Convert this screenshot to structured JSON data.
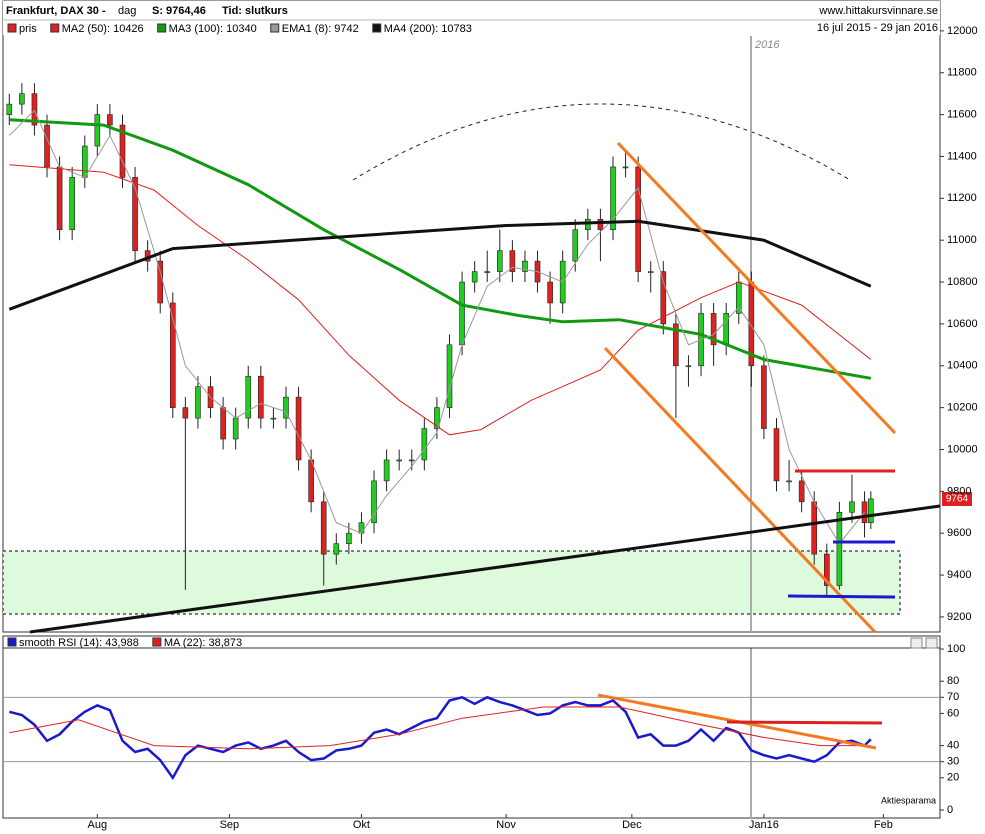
{
  "chart_data": [
    {
      "type": "candlestick",
      "title": "Frankfurt, DAX 30 -",
      "period": "dag",
      "last": "S: 9764,46",
      "mode": "Tid: slutkurs",
      "source": "www.hittakursvinnare.se",
      "date_range": "16 jul 2015 - 29 jan 2016",
      "annotation": "2016",
      "xlim": [
        -1,
        148
      ],
      "ylim": [
        9128,
        12052
      ],
      "yticks": [
        9200,
        9400,
        9600,
        9800,
        10000,
        10200,
        10400,
        10600,
        10800,
        11000,
        11200,
        11400,
        11600,
        11800,
        12000
      ],
      "candles": {
        "name": "pris",
        "color": "#dd2222",
        "up_color": "#22cc22",
        "x": [
          0,
          2,
          4,
          6,
          8,
          10,
          12,
          14,
          16,
          18,
          20,
          22,
          24,
          26,
          28,
          30,
          32,
          34,
          36,
          38,
          40,
          42,
          44,
          46,
          48,
          50,
          52,
          54,
          56,
          58,
          60,
          62,
          64,
          66,
          68,
          70,
          72,
          74,
          76,
          78,
          80,
          82,
          84,
          86,
          88,
          90,
          92,
          94,
          96,
          98,
          100,
          102,
          104,
          106,
          108,
          110,
          112,
          114,
          116,
          118,
          120,
          122,
          124,
          126,
          128,
          130,
          132,
          134,
          136,
          137
        ],
        "open": [
          11600,
          11650,
          11700,
          11550,
          11350,
          11050,
          11300,
          11450,
          11600,
          11550,
          11300,
          10950,
          10900,
          10700,
          10200,
          10150,
          10300,
          10200,
          10050,
          10150,
          10350,
          10150,
          10150,
          10250,
          9950,
          9750,
          9500,
          9550,
          9600,
          9650,
          9850,
          9950,
          9950,
          9950,
          10100,
          10200,
          10500,
          10800,
          10850,
          10850,
          10950,
          10850,
          10900,
          10800,
          10700,
          10900,
          11050,
          11100,
          11050,
          11350,
          11350,
          10850,
          10850,
          10600,
          10400,
          10400,
          10650,
          10500,
          10650,
          10800,
          10400,
          10100,
          9850,
          9850,
          9750,
          9500,
          9350,
          9700,
          9750,
          9650
        ],
        "high": [
          11700,
          11750,
          11750,
          11600,
          11400,
          11350,
          11500,
          11650,
          11650,
          11600,
          11350,
          11000,
          10950,
          10750,
          10250,
          10350,
          10350,
          10250,
          10200,
          10400,
          10400,
          10200,
          10300,
          10300,
          10000,
          9800,
          9600,
          9650,
          9700,
          9900,
          10000,
          10000,
          10000,
          10150,
          10250,
          10550,
          10850,
          10900,
          10950,
          11050,
          11000,
          10950,
          10950,
          10850,
          10950,
          11100,
          11150,
          11150,
          11400,
          11430,
          11400,
          10900,
          10900,
          10650,
          10450,
          10700,
          10700,
          10700,
          10850,
          10850,
          10450,
          10150,
          9950,
          9900,
          9800,
          9550,
          9750,
          9880,
          9800,
          9800
        ],
        "low": [
          11550,
          11600,
          11500,
          11300,
          11000,
          11000,
          11250,
          11400,
          11500,
          11250,
          10900,
          10850,
          10650,
          10150,
          9330,
          10100,
          10150,
          10000,
          10000,
          10100,
          10100,
          10100,
          10100,
          9900,
          9700,
          9350,
          9450,
          9500,
          9550,
          9600,
          9800,
          9900,
          9900,
          9900,
          10050,
          10150,
          10450,
          10750,
          10800,
          10800,
          10800,
          10800,
          10750,
          10600,
          10650,
          10850,
          11000,
          10900,
          11000,
          11300,
          10800,
          10750,
          10550,
          10150,
          10300,
          10350,
          10400,
          10450,
          10600,
          10300,
          10050,
          9800,
          9800,
          9700,
          9450,
          9300,
          9330,
          9650,
          9580,
          9620
        ],
        "close": [
          11650,
          11700,
          11550,
          11350,
          11050,
          11300,
          11450,
          11600,
          11550,
          11300,
          10950,
          10900,
          10700,
          10200,
          10150,
          10300,
          10200,
          10050,
          10150,
          10350,
          10150,
          10150,
          10250,
          9950,
          9750,
          9500,
          9550,
          9600,
          9650,
          9850,
          9950,
          9950,
          9950,
          10100,
          10200,
          10500,
          10800,
          10850,
          10850,
          10950,
          10850,
          10900,
          10800,
          10700,
          10900,
          11050,
          11100,
          11050,
          11350,
          11350,
          10850,
          10850,
          10600,
          10400,
          10400,
          10650,
          10500,
          10650,
          10800,
          10400,
          10100,
          9850,
          9850,
          9750,
          9500,
          9350,
          9700,
          9750,
          9650,
          9764
        ]
      },
      "series": [
        {
          "name": "MA2 (50): 10426",
          "color": "#e02020",
          "width": 1,
          "x": [
            0,
            15,
            23,
            30,
            38,
            46,
            54,
            62,
            70,
            75,
            83,
            94,
            100,
            110,
            116,
            126,
            137
          ],
          "values": [
            11360,
            11325,
            11240,
            11070,
            10905,
            10715,
            10450,
            10235,
            10070,
            10095,
            10235,
            10380,
            10570,
            10725,
            10800,
            10690,
            10430
          ]
        },
        {
          "name": "MA3 (100): 10340",
          "color": "#119911",
          "width": 3,
          "x": [
            0,
            15,
            26,
            38,
            50,
            62,
            72,
            81,
            88,
            97,
            110,
            120,
            137
          ],
          "values": [
            11575,
            11550,
            11430,
            11265,
            11050,
            10860,
            10690,
            10640,
            10610,
            10620,
            10550,
            10430,
            10340
          ]
        },
        {
          "name": "EMA1 (8): 9742",
          "color": "#999999",
          "width": 1,
          "x": [
            0,
            4,
            8,
            12,
            16,
            20,
            24,
            28,
            32,
            36,
            40,
            44,
            48,
            52,
            56,
            60,
            64,
            68,
            72,
            76,
            80,
            84,
            88,
            92,
            96,
            100,
            104,
            108,
            112,
            116,
            120,
            124,
            128,
            132,
            136
          ],
          "values": [
            11500,
            11620,
            11350,
            11300,
            11500,
            11250,
            10850,
            10400,
            10250,
            10150,
            10220,
            10180,
            9950,
            9650,
            9600,
            9780,
            9920,
            10080,
            10500,
            10780,
            10870,
            10850,
            10800,
            10980,
            11100,
            11250,
            10800,
            10500,
            10550,
            10680,
            10500,
            10000,
            9750,
            9550,
            9700
          ]
        },
        {
          "name": "MA4 (200): 10783",
          "color": "#111111",
          "width": 3,
          "x": [
            0,
            26,
            50,
            79,
            100,
            120,
            137
          ],
          "values": [
            10670,
            10960,
            11010,
            11070,
            11090,
            11000,
            10780
          ]
        }
      ]
    },
    {
      "type": "line",
      "watermark": "Aktiesparama",
      "xlim": [
        -1,
        148
      ],
      "ylim": [
        -5,
        105
      ],
      "yticks": [
        0,
        20,
        30,
        40,
        60,
        70,
        80,
        100
      ],
      "reference_lines": [
        30,
        70
      ],
      "xticks": [
        {
          "value": 14,
          "label": "Aug"
        },
        {
          "value": 35,
          "label": "Sep"
        },
        {
          "value": 56,
          "label": "Okt"
        },
        {
          "value": 79,
          "label": "Nov"
        },
        {
          "value": 99,
          "label": "Dec"
        },
        {
          "value": 120,
          "label": "Jan16"
        },
        {
          "value": 139,
          "label": "Feb"
        }
      ],
      "series": [
        {
          "name": "smooth RSI (14): 43,988",
          "color": "#1a1acc",
          "width": 2.5,
          "x": [
            0,
            2,
            4,
            6,
            8,
            10,
            12,
            14,
            16,
            18,
            20,
            22,
            24,
            26,
            28,
            30,
            32,
            34,
            36,
            38,
            40,
            42,
            44,
            46,
            48,
            50,
            52,
            54,
            56,
            58,
            60,
            62,
            64,
            66,
            68,
            70,
            72,
            74,
            76,
            78,
            80,
            82,
            84,
            86,
            88,
            90,
            92,
            94,
            96,
            98,
            100,
            102,
            104,
            106,
            108,
            110,
            112,
            114,
            116,
            118,
            120,
            122,
            124,
            126,
            128,
            130,
            132,
            134,
            136,
            137
          ],
          "values": [
            61,
            59,
            53,
            43,
            47,
            55,
            61,
            65,
            62,
            43,
            36,
            38,
            31,
            20,
            34,
            40,
            38,
            36,
            40,
            42,
            38,
            40,
            43,
            36,
            31,
            32,
            37,
            38,
            40,
            48,
            50,
            47,
            51,
            55,
            57,
            68,
            70,
            66,
            70,
            67,
            65,
            62,
            59,
            60,
            65,
            67,
            65,
            65,
            68,
            61,
            45,
            47,
            40,
            40,
            43,
            50,
            43,
            51,
            48,
            37,
            34,
            32,
            34,
            32,
            30,
            34,
            42,
            43,
            40,
            44
          ]
        },
        {
          "name": "MA (22): 38,873",
          "color": "#e02020",
          "width": 1,
          "x": [
            0,
            11,
            23,
            38,
            51,
            62,
            72,
            85,
            97,
            110,
            120,
            129,
            137
          ],
          "values": [
            48,
            56,
            40,
            38,
            40,
            47,
            57,
            64,
            64,
            53,
            45,
            40,
            40
          ]
        }
      ]
    }
  ]
}
